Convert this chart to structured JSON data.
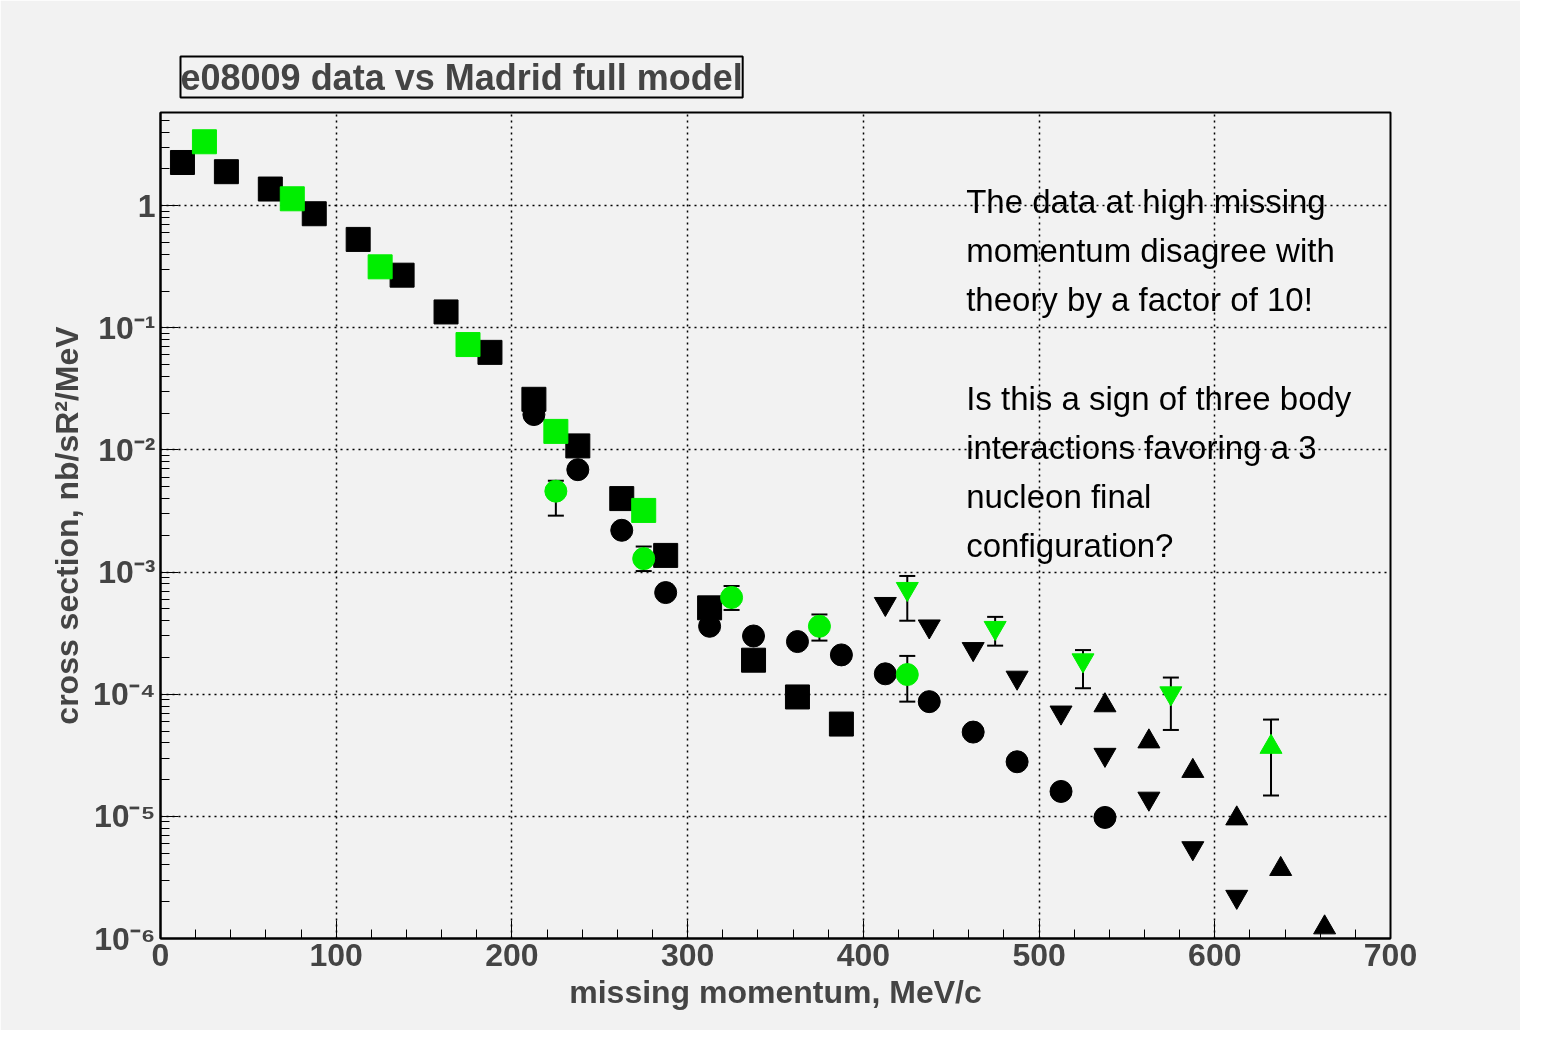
{
  "chart_data": {
    "type": "scatter",
    "title": "e08009 data vs Madrid full model",
    "xlabel": "missing momentum, MeV/c",
    "ylabel": "cross section, nb/sR²/MeV",
    "log": "y",
    "grid": true,
    "xlim": [
      0,
      700
    ],
    "xticks": [
      0,
      100,
      200,
      300,
      400,
      500,
      600,
      700
    ],
    "ylim": [
      1e-06,
      5.8
    ],
    "yticks": [
      {
        "value": 1e-06,
        "label": "10⁻⁶"
      },
      {
        "value": 1e-05,
        "label": "10⁻⁵"
      },
      {
        "value": 0.0001,
        "label": "10⁻⁴"
      },
      {
        "value": 0.001,
        "label": "10⁻³"
      },
      {
        "value": 0.01,
        "label": "10⁻²"
      },
      {
        "value": 0.1,
        "label": "10⁻¹"
      },
      1
    ],
    "annotations": [
      "The data at high missing\nmomentum disagree with\ntheory by a factor of 10!\n\nIs this a sign of three body\ninteractions favoring a 3\nnucleon final\nconfiguration?"
    ],
    "series": [
      {
        "marker": "square",
        "color": "#000000",
        "x": [
          12.5,
          37.5,
          62.5,
          87.5,
          112.5,
          137.5,
          162.5,
          187.5,
          212.5,
          237.5,
          262.5,
          287.5,
          312.5,
          337.5,
          362.5,
          387.5
        ],
        "values": [
          2.26,
          1.9,
          1.37,
          0.86,
          0.53,
          0.27,
          0.135,
          0.063,
          0.026,
          0.0108,
          0.004,
          0.00137,
          0.00051,
          0.00019,
          9.5e-05,
          5.7e-05
        ]
      },
      {
        "marker": "square",
        "color": "#00ee00",
        "x": [
          25,
          75,
          125,
          175,
          225,
          275
        ],
        "values": [
          3.34,
          1.14,
          0.316,
          0.073,
          0.0142,
          0.0032
        ]
      },
      {
        "marker": "circle",
        "color": "#000000",
        "x": [
          212.5,
          237.5,
          262.5,
          287.5,
          312.5,
          337.5,
          362.5,
          387.5,
          412.5,
          437.5,
          462.5,
          487.5,
          512.5,
          537.5
        ],
        "values": [
          0.0195,
          0.0069,
          0.0022,
          0.00068,
          0.00036,
          0.0003,
          0.00027,
          0.00021,
          0.000147,
          8.7e-05,
          4.9e-05,
          2.8e-05,
          1.6e-05,
          9.8e-06
        ]
      },
      {
        "marker": "circle",
        "color": "#00ee00",
        "x": [
          225,
          275,
          325,
          375,
          425
        ],
        "values": [
          0.0046,
          0.00129,
          0.00062,
          0.00036,
          0.000145
        ],
        "errors": [
          [
            0.0029,
            0.0056
          ],
          [
            0.00102,
            0.00162
          ],
          [
            0.00049,
            0.00077
          ],
          [
            0.000275,
            0.00045
          ],
          [
            8.7e-05,
            0.000206
          ]
        ]
      },
      {
        "color": "#000000",
        "x": [
          412.5,
          437.5,
          462.5,
          487.5,
          512.5,
          537.5,
          562.5,
          587.5,
          612.5
        ],
        "values": [
          0.00055,
          0.00036,
          0.000235,
          0.000137,
          7.1e-05,
          3.2e-05,
          1.4e-05,
          5.5e-06,
          2.2e-06
        ]
      },
      {
        "color": "#00ee00",
        "x": [
          425,
          475,
          525,
          575
        ],
        "values": [
          0.00073,
          0.00035,
          0.00019,
          0.000102
        ],
        "errors": [
          [
            0.0004,
            0.00093
          ],
          [
            0.00025,
            0.00043
          ],
          [
            0.000112,
            0.00023
          ],
          [
            5.1e-05,
            0.000137
          ]
        ]
      },
      {
        "marker": "triangle",
        "color": "#000000",
        "x": [
          537.5,
          562.5,
          587.5,
          612.5,
          637.5,
          662.5
        ],
        "values": [
          8.1e-05,
          4.1e-05,
          2.35e-05,
          9.6e-06,
          3.7e-06,
          1.23e-06
        ]
      },
      {
        "marker": "triangle",
        "color": "#00ee00",
        "x": [
          632
        ],
        "values": [
          3.7e-05
        ],
        "errors": [
          [
            1.48e-05,
            6.2e-05
          ]
        ]
      }
    ]
  }
}
